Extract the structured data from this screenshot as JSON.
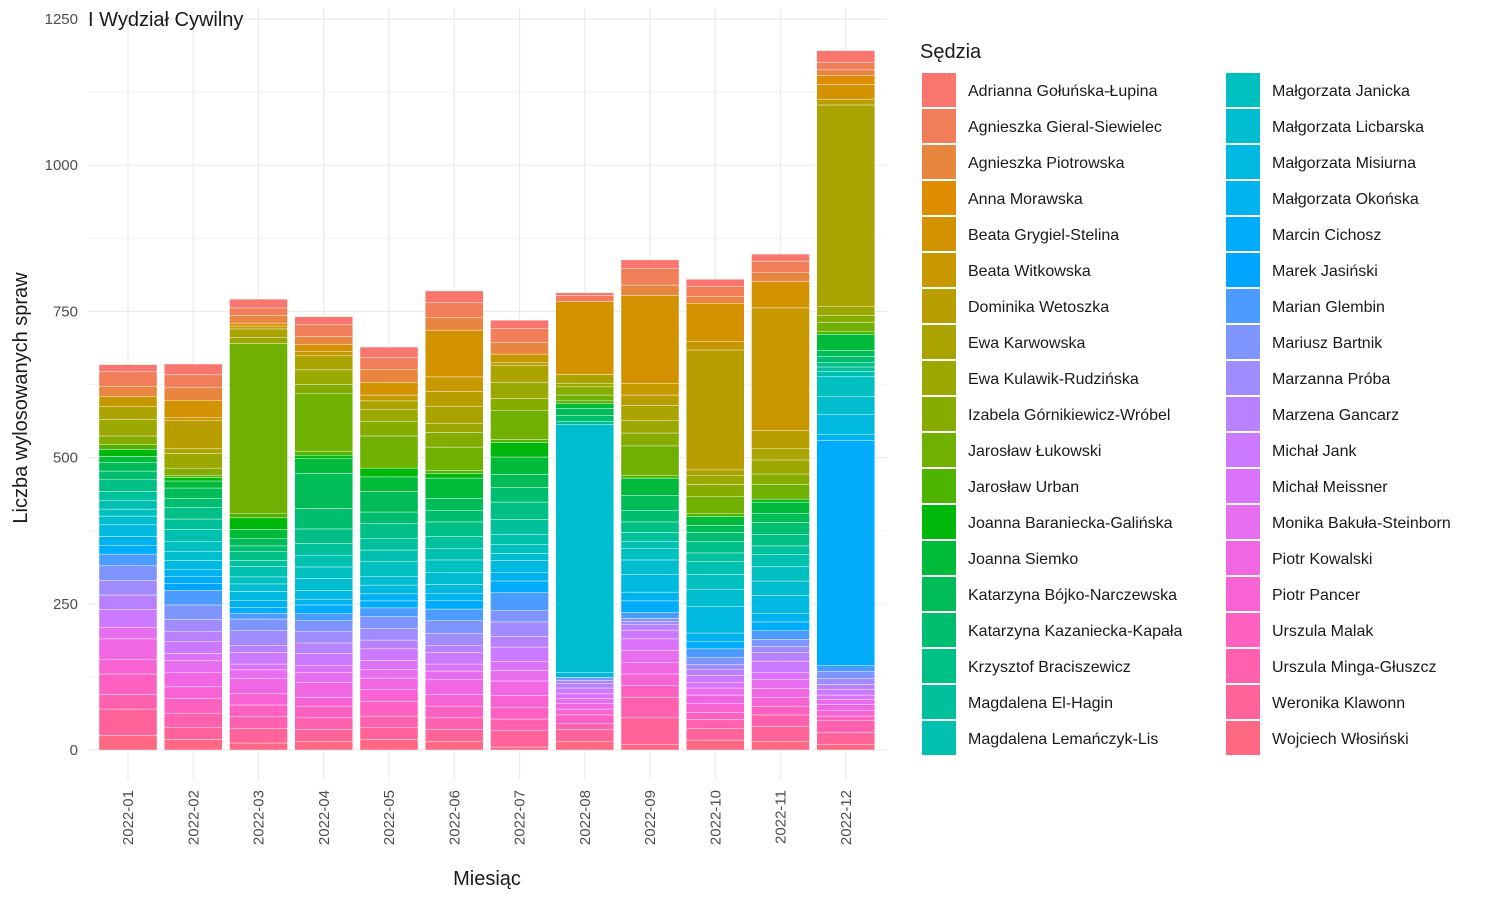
{
  "chart_data": {
    "type": "bar",
    "stacked": true,
    "title": "I Wydział Cywilny",
    "xlabel": "Miesiąc",
    "ylabel": "Liczba wylosowanych spraw",
    "ylim": [
      -40,
      1250
    ],
    "yticks": [
      0,
      250,
      500,
      750,
      1000,
      1250
    ],
    "grid": true,
    "legend_title": "Sędzia",
    "legend_position": "right",
    "categories": [
      "2022-01",
      "2022-02",
      "2022-03",
      "2022-04",
      "2022-05",
      "2022-06",
      "2022-07",
      "2022-08",
      "2022-09",
      "2022-10",
      "2022-11",
      "2022-12"
    ],
    "series": [
      {
        "name": "Adrianna Gołuńska-Łupina",
        "color": "#F8766D",
        "values": [
          12,
          18,
          15,
          14,
          18,
          20,
          14,
          5,
          15,
          12,
          12,
          20
        ]
      },
      {
        "name": "Agnieszka Gieral-Siewielec",
        "color": "#F17E58",
        "values": [
          25,
          22,
          13,
          20,
          20,
          25,
          24,
          10,
          28,
          18,
          20,
          13
        ]
      },
      {
        "name": "Agnieszka Piotrowska",
        "color": "#E8853F",
        "values": [
          18,
          22,
          13,
          14,
          22,
          22,
          20,
          0,
          18,
          11,
          15,
          10
        ]
      },
      {
        "name": "Anna Morawska",
        "color": "#DE8C00",
        "values": [
          0,
          0,
          5,
          0,
          0,
          0,
          0,
          0,
          0,
          0,
          0,
          15
        ]
      },
      {
        "name": "Beata Grygiel-Stelina",
        "color": "#D39200",
        "values": [
          0,
          30,
          0,
          12,
          22,
          80,
          0,
          125,
          150,
          65,
          45,
          25
        ]
      },
      {
        "name": "Beata Witkowska",
        "color": "#C79800",
        "values": [
          17,
          5,
          5,
          7,
          10,
          25,
          15,
          0,
          20,
          15,
          210,
          0
        ]
      },
      {
        "name": "Dominika Wetoszka",
        "color": "#B99E00",
        "values": [
          0,
          48,
          0,
          0,
          0,
          25,
          5,
          0,
          18,
          205,
          30,
          10
        ]
      },
      {
        "name": "Ewa Karwowska",
        "color": "#AAA300",
        "values": [
          22,
          8,
          15,
          24,
          15,
          30,
          28,
          15,
          25,
          10,
          20,
          345
        ]
      },
      {
        "name": "Ewa Kulawik-Rudzińska",
        "color": "#9AA800",
        "values": [
          28,
          25,
          10,
          25,
          20,
          15,
          28,
          6,
          22,
          15,
          24,
          15
        ]
      },
      {
        "name": "Izabela Górnikiewicz-Wróbel",
        "color": "#86AC00",
        "values": [
          15,
          12,
          0,
          15,
          25,
          25,
          20,
          14,
          22,
          20,
          18,
          12
        ]
      },
      {
        "name": "Jarosław Łukowski",
        "color": "#6FB000",
        "values": [
          0,
          0,
          290,
          100,
          55,
          40,
          50,
          10,
          50,
          30,
          25,
          15
        ]
      },
      {
        "name": "Jarosław Urban",
        "color": "#4FB400",
        "values": [
          8,
          4,
          8,
          6,
          0,
          5,
          5,
          5,
          5,
          5,
          0,
          5
        ]
      },
      {
        "name": "Joanna Baraniecka-Galińska",
        "color": "#00B70B",
        "values": [
          12,
          6,
          20,
          6,
          15,
          8,
          25,
          0,
          0,
          0,
          5,
          0
        ]
      },
      {
        "name": "Joanna Siemko",
        "color": "#00BA3A",
        "values": [
          10,
          12,
          15,
          25,
          25,
          35,
          30,
          8,
          30,
          15,
          20,
          28
        ]
      },
      {
        "name": "Katarzyna Bójko-Narczewska",
        "color": "#00BC57",
        "values": [
          15,
          18,
          13,
          60,
          35,
          20,
          22,
          12,
          25,
          12,
          15,
          10
        ]
      },
      {
        "name": "Katarzyna Kazaniecka-Kapała",
        "color": "#00BE70",
        "values": [
          15,
          15,
          10,
          35,
          20,
          20,
          25,
          10,
          20,
          15,
          20,
          10
        ]
      },
      {
        "name": "Krzysztof Braciszewicz",
        "color": "#00C086",
        "values": [
          20,
          20,
          15,
          25,
          25,
          25,
          30,
          5,
          18,
          20,
          20,
          8
        ]
      },
      {
        "name": "Magdalena El-Hagin",
        "color": "#00C19B",
        "values": [
          15,
          18,
          10,
          20,
          20,
          20,
          25,
          0,
          15,
          15,
          15,
          8
        ]
      },
      {
        "name": "Magdalena Lemańczyk-Lis",
        "color": "#00C1AF",
        "values": [
          15,
          20,
          18,
          20,
          20,
          20,
          18,
          0,
          12,
          22,
          20,
          8
        ]
      },
      {
        "name": "Małgorzata Janicka",
        "color": "#00C0C0",
        "values": [
          12,
          18,
          12,
          20,
          25,
          22,
          15,
          0,
          20,
          25,
          25,
          35
        ]
      },
      {
        "name": "Małgorzata Licbarska",
        "color": "#00BDD0",
        "values": [
          15,
          15,
          13,
          20,
          15,
          20,
          12,
          425,
          25,
          30,
          25,
          30
        ]
      },
      {
        "name": "Małgorzata Misiurna",
        "color": "#00B9E0",
        "values": [
          20,
          15,
          15,
          15,
          15,
          15,
          20,
          8,
          30,
          45,
          30,
          35
        ]
      },
      {
        "name": "Małgorzata Okońska",
        "color": "#00B3EF",
        "values": [
          15,
          12,
          12,
          10,
          12,
          12,
          15,
          0,
          15,
          15,
          15,
          10
        ]
      },
      {
        "name": "Marcin Cichosz",
        "color": "#00ACFC",
        "values": [
          15,
          12,
          10,
          15,
          12,
          15,
          20,
          0,
          20,
          12,
          15,
          385
        ]
      },
      {
        "name": "Marek Jasiński",
        "color": "#00A5FF",
        "values": [
          0,
          12,
          0,
          0,
          0,
          0,
          0,
          0,
          0,
          0,
          0,
          0
        ]
      },
      {
        "name": "Marian Glembin",
        "color": "#4C9CFF",
        "values": [
          20,
          25,
          10,
          12,
          15,
          20,
          30,
          0,
          10,
          15,
          15,
          10
        ]
      },
      {
        "name": "Mariusz Bartnik",
        "color": "#7E95FF",
        "values": [
          25,
          25,
          20,
          18,
          20,
          22,
          20,
          5,
          5,
          12,
          12,
          12
        ]
      },
      {
        "name": "Marzanna Próba",
        "color": "#A08BFF",
        "values": [
          25,
          20,
          25,
          20,
          20,
          20,
          25,
          5,
          5,
          8,
          10,
          10
        ]
      },
      {
        "name": "Marzena Gancarz",
        "color": "#B882FF",
        "values": [
          25,
          18,
          12,
          18,
          15,
          12,
          18,
          8,
          10,
          10,
          15,
          8
        ]
      },
      {
        "name": "Michał Jank",
        "color": "#CB7AFF",
        "values": [
          30,
          20,
          20,
          20,
          20,
          20,
          25,
          10,
          15,
          12,
          20,
          10
        ]
      },
      {
        "name": "Michał Meissner",
        "color": "#DA73FA",
        "values": [
          0,
          12,
          10,
          12,
          15,
          12,
          15,
          8,
          20,
          10,
          12,
          8
        ]
      },
      {
        "name": "Monika Bakuła-Steinborn",
        "color": "#E66EEF",
        "values": [
          20,
          20,
          15,
          18,
          15,
          15,
          18,
          8,
          20,
          12,
          15,
          8
        ]
      },
      {
        "name": "Piotr Kowalski",
        "color": "#F066E3",
        "values": [
          35,
          25,
          25,
          25,
          20,
          25,
          25,
          10,
          20,
          15,
          15,
          10
        ]
      },
      {
        "name": "Piotr Pancer",
        "color": "#F763D3",
        "values": [
          25,
          20,
          20,
          15,
          20,
          20,
          20,
          10,
          20,
          15,
          15,
          10
        ]
      },
      {
        "name": "Urszula Malak",
        "color": "#FC61C2",
        "values": [
          35,
          25,
          20,
          20,
          25,
          20,
          20,
          15,
          20,
          12,
          15,
          8
        ]
      },
      {
        "name": "Urszula Minga-Głuszcz",
        "color": "#FF61AF",
        "values": [
          25,
          25,
          20,
          20,
          20,
          20,
          20,
          10,
          35,
          15,
          20,
          20
        ]
      },
      {
        "name": "Weronika Klawonn",
        "color": "#FF639A",
        "values": [
          45,
          20,
          25,
          20,
          20,
          20,
          28,
          20,
          45,
          20,
          25,
          20
        ]
      },
      {
        "name": "Wojciech Włosiński",
        "color": "#FF6882",
        "values": [
          25,
          18,
          12,
          15,
          18,
          15,
          5,
          15,
          10,
          17,
          15,
          10
        ]
      }
    ]
  }
}
